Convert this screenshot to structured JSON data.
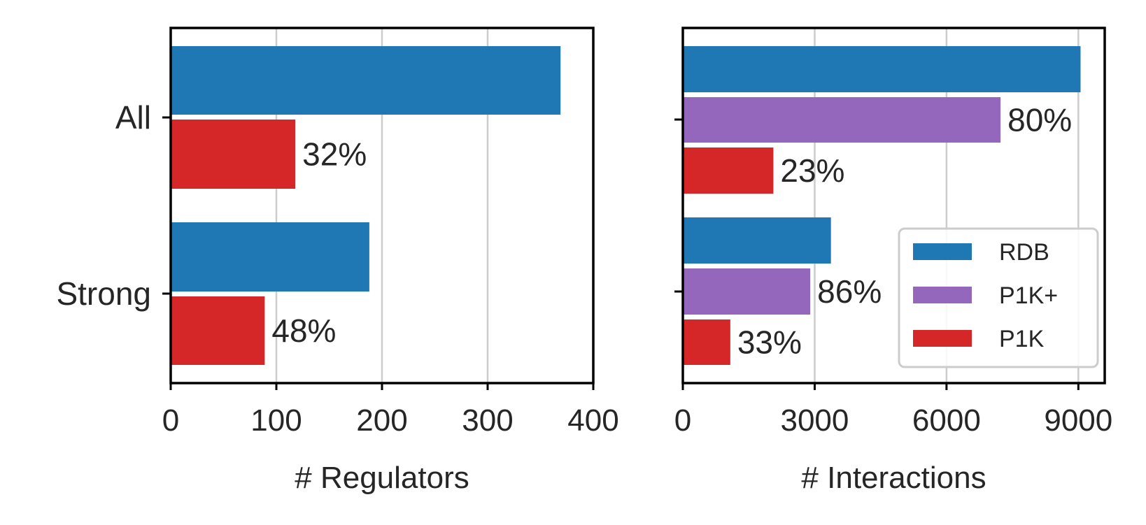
{
  "chart_data": [
    {
      "type": "bar",
      "orientation": "horizontal",
      "categories": [
        "All",
        "Strong"
      ],
      "series": [
        {
          "name": "RDB",
          "color": "#1f77b4",
          "values": [
            369,
            188
          ]
        },
        {
          "name": "P1K",
          "color": "#d62728",
          "values": [
            118,
            89
          ],
          "labels": [
            "32%",
            "48%"
          ]
        }
      ],
      "xlabel": "# Regulators",
      "xlim": [
        0,
        400
      ],
      "xticks": [
        0,
        100,
        200,
        300,
        400
      ],
      "grid": "x"
    },
    {
      "type": "bar",
      "orientation": "horizontal",
      "categories": [
        "All",
        "Strong"
      ],
      "series": [
        {
          "name": "RDB",
          "color": "#1f77b4",
          "values": [
            9050,
            3370
          ]
        },
        {
          "name": "P1K+",
          "color": "#9467bd",
          "values": [
            7230,
            2900
          ],
          "labels": [
            "80%",
            "86%"
          ]
        },
        {
          "name": "P1K",
          "color": "#d62728",
          "values": [
            2060,
            1080
          ],
          "labels": [
            "23%",
            "33%"
          ]
        }
      ],
      "xlabel": "# Interactions",
      "xlim": [
        0,
        9600
      ],
      "xticks": [
        0,
        3000,
        6000,
        9000
      ],
      "grid": "x",
      "legend": {
        "placement": "lower-right",
        "entries": [
          "RDB",
          "P1K+",
          "P1K"
        ]
      }
    }
  ]
}
